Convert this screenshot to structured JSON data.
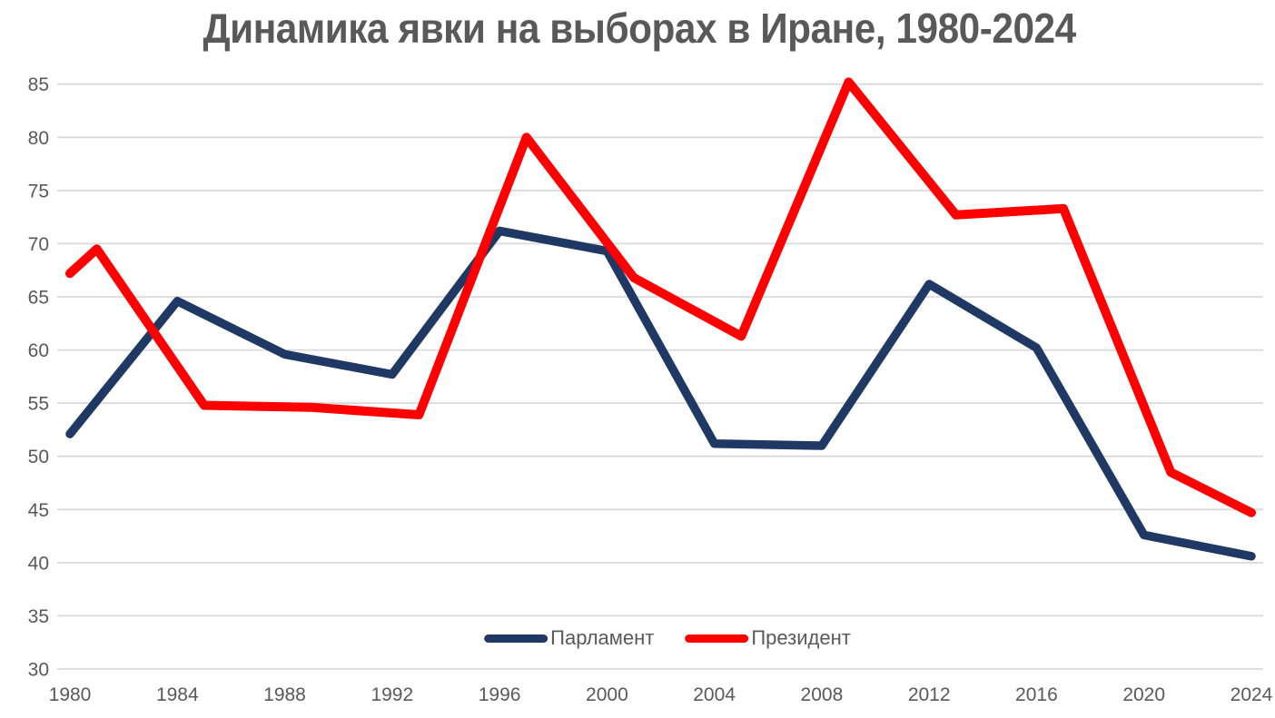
{
  "chart_data": {
    "type": "line",
    "title": "Динамика явки на выборах в Иране, 1980-2024",
    "x_axis": {
      "tick_labels": [
        "1980",
        "1984",
        "1988",
        "1992",
        "1996",
        "2000",
        "2004",
        "2008",
        "2012",
        "2016",
        "2020",
        "2024"
      ],
      "ticks": [
        1980,
        1984,
        1988,
        1992,
        1996,
        2000,
        2004,
        2008,
        2012,
        2016,
        2020,
        2024
      ],
      "range": [
        1980,
        2024
      ]
    },
    "y_axis": {
      "tick_labels": [
        "30",
        "35",
        "40",
        "45",
        "50",
        "55",
        "60",
        "65",
        "70",
        "75",
        "80",
        "85"
      ],
      "ticks": [
        30,
        35,
        40,
        45,
        50,
        55,
        60,
        65,
        70,
        75,
        80,
        85
      ],
      "range": [
        30,
        85
      ]
    },
    "grid": "horizontal",
    "legend_position": "bottom-center",
    "series": [
      {
        "name": "Парламент",
        "color": "#1F3864",
        "points": [
          [
            1980,
            52.1
          ],
          [
            1984,
            64.6
          ],
          [
            1988,
            59.6
          ],
          [
            1992,
            57.7
          ],
          [
            1996,
            71.2
          ],
          [
            2000,
            69.3
          ],
          [
            2004,
            51.2
          ],
          [
            2008,
            51.0
          ],
          [
            2012,
            66.2
          ],
          [
            2016,
            60.2
          ],
          [
            2020,
            42.6
          ],
          [
            2024,
            40.6
          ]
        ]
      },
      {
        "name": "Президент",
        "color": "#FF0000",
        "points": [
          [
            1980,
            67.2
          ],
          [
            1981,
            69.5
          ],
          [
            1985,
            54.8
          ],
          [
            1989,
            54.6
          ],
          [
            1993,
            53.9
          ],
          [
            1997,
            80.0
          ],
          [
            2001,
            66.8
          ],
          [
            2005,
            61.3
          ],
          [
            2009,
            85.2
          ],
          [
            2013,
            72.7
          ],
          [
            2017,
            73.3
          ],
          [
            2021,
            48.5
          ],
          [
            2024,
            44.7
          ]
        ]
      }
    ],
    "colors": {
      "text": "#595959",
      "grid": "#D9D9D9",
      "background": "#FFFFFF"
    }
  }
}
